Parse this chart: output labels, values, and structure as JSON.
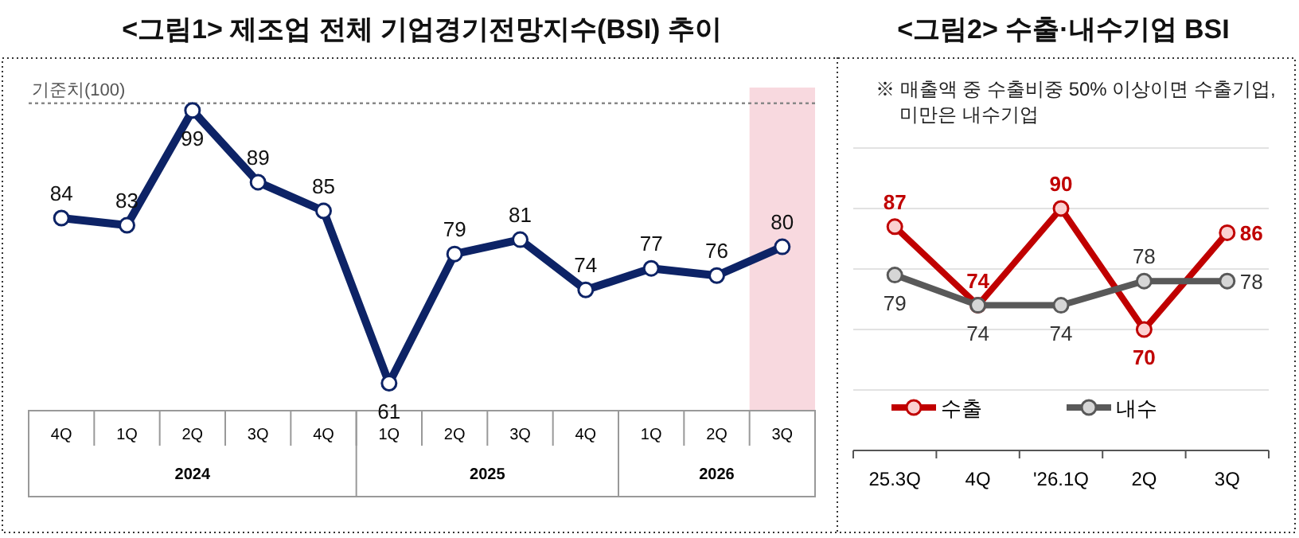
{
  "chart_data": [
    {
      "type": "line",
      "title": "<그림1> 제조업 전체 기업경기전망지수(BSI) 추이",
      "categories": [
        "4Q",
        "1Q",
        "2Q",
        "3Q",
        "4Q",
        "1Q",
        "2Q",
        "3Q",
        "4Q",
        "1Q",
        "2Q",
        "3Q"
      ],
      "series": [
        {
          "color": "#0d2366",
          "values": [
            84,
            83,
            99,
            89,
            85,
            61,
            79,
            81,
            74,
            77,
            76,
            80
          ]
        }
      ],
      "tick_labels": "x",
      "marker": "circle",
      "data_labels": true,
      "legend": false,
      "ref_lines": [
        {
          "axis": "y",
          "value": 100,
          "label": "기준치(100)",
          "color": "#888888",
          "line_style": "dotted"
        }
      ],
      "annotations": [
        "2024",
        "2025",
        "2026"
      ]
    },
    {
      "type": "line",
      "title": "<그림2> 수출·내수기업 BSI",
      "categories": [
        "25.3Q",
        "4Q",
        "'26.1Q",
        "2Q",
        "3Q"
      ],
      "series": [
        {
          "name": "수출",
          "color": "#c00000",
          "values": [
            87,
            74,
            90,
            70,
            86
          ]
        },
        {
          "name": "내수",
          "color": "#595959",
          "values": [
            79,
            74,
            74,
            78,
            78
          ]
        }
      ],
      "ylim": [
        50,
        100
      ],
      "yticks": [
        {
          "value": 60,
          "label": null
        },
        {
          "value": 70,
          "label": null
        },
        {
          "value": 80,
          "label": null
        },
        {
          "value": 90,
          "label": null
        },
        {
          "value": 100,
          "label": null
        }
      ],
      "tick_labels": "x",
      "grid": "y",
      "legend": "bottom",
      "marker": "circle",
      "data_labels": true,
      "annotations": [
        "※ 매출액 중 수출비중 50% 이상이면 수출기업,\n미만은 내수기업"
      ]
    }
  ]
}
